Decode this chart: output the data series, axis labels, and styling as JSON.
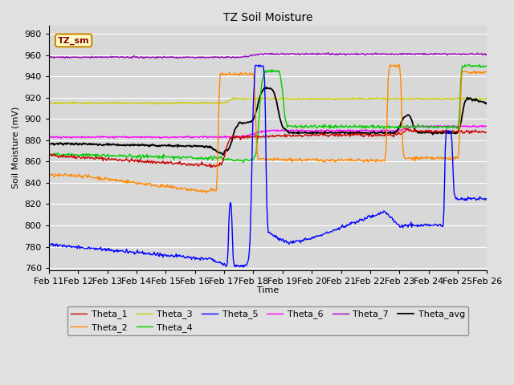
{
  "title": "TZ Soil Moisture",
  "ylabel": "Soil Moisture (mV)",
  "xlabel": "Time",
  "label_box": "TZ_sm",
  "ylim": [
    758,
    988
  ],
  "yticks": [
    760,
    780,
    800,
    820,
    840,
    860,
    880,
    900,
    920,
    940,
    960,
    980
  ],
  "x_labels": [
    "Feb 11",
    "Feb 12",
    "Feb 13",
    "Feb 14",
    "Feb 15",
    "Feb 16",
    "Feb 17",
    "Feb 18",
    "Feb 19",
    "Feb 20",
    "Feb 21",
    "Feb 22",
    "Feb 23",
    "Feb 24",
    "Feb 25",
    "Feb 26"
  ],
  "colors": {
    "Theta_1": "#cc0000",
    "Theta_2": "#ff8800",
    "Theta_3": "#cccc00",
    "Theta_4": "#00cc00",
    "Theta_5": "#0000ff",
    "Theta_6": "#ff00ff",
    "Theta_7": "#9900bb",
    "Theta_avg": "#000000"
  },
  "background_color": "#e0e0e0",
  "plot_bg_color": "#d8d8d8",
  "grid_color": "#ffffff"
}
